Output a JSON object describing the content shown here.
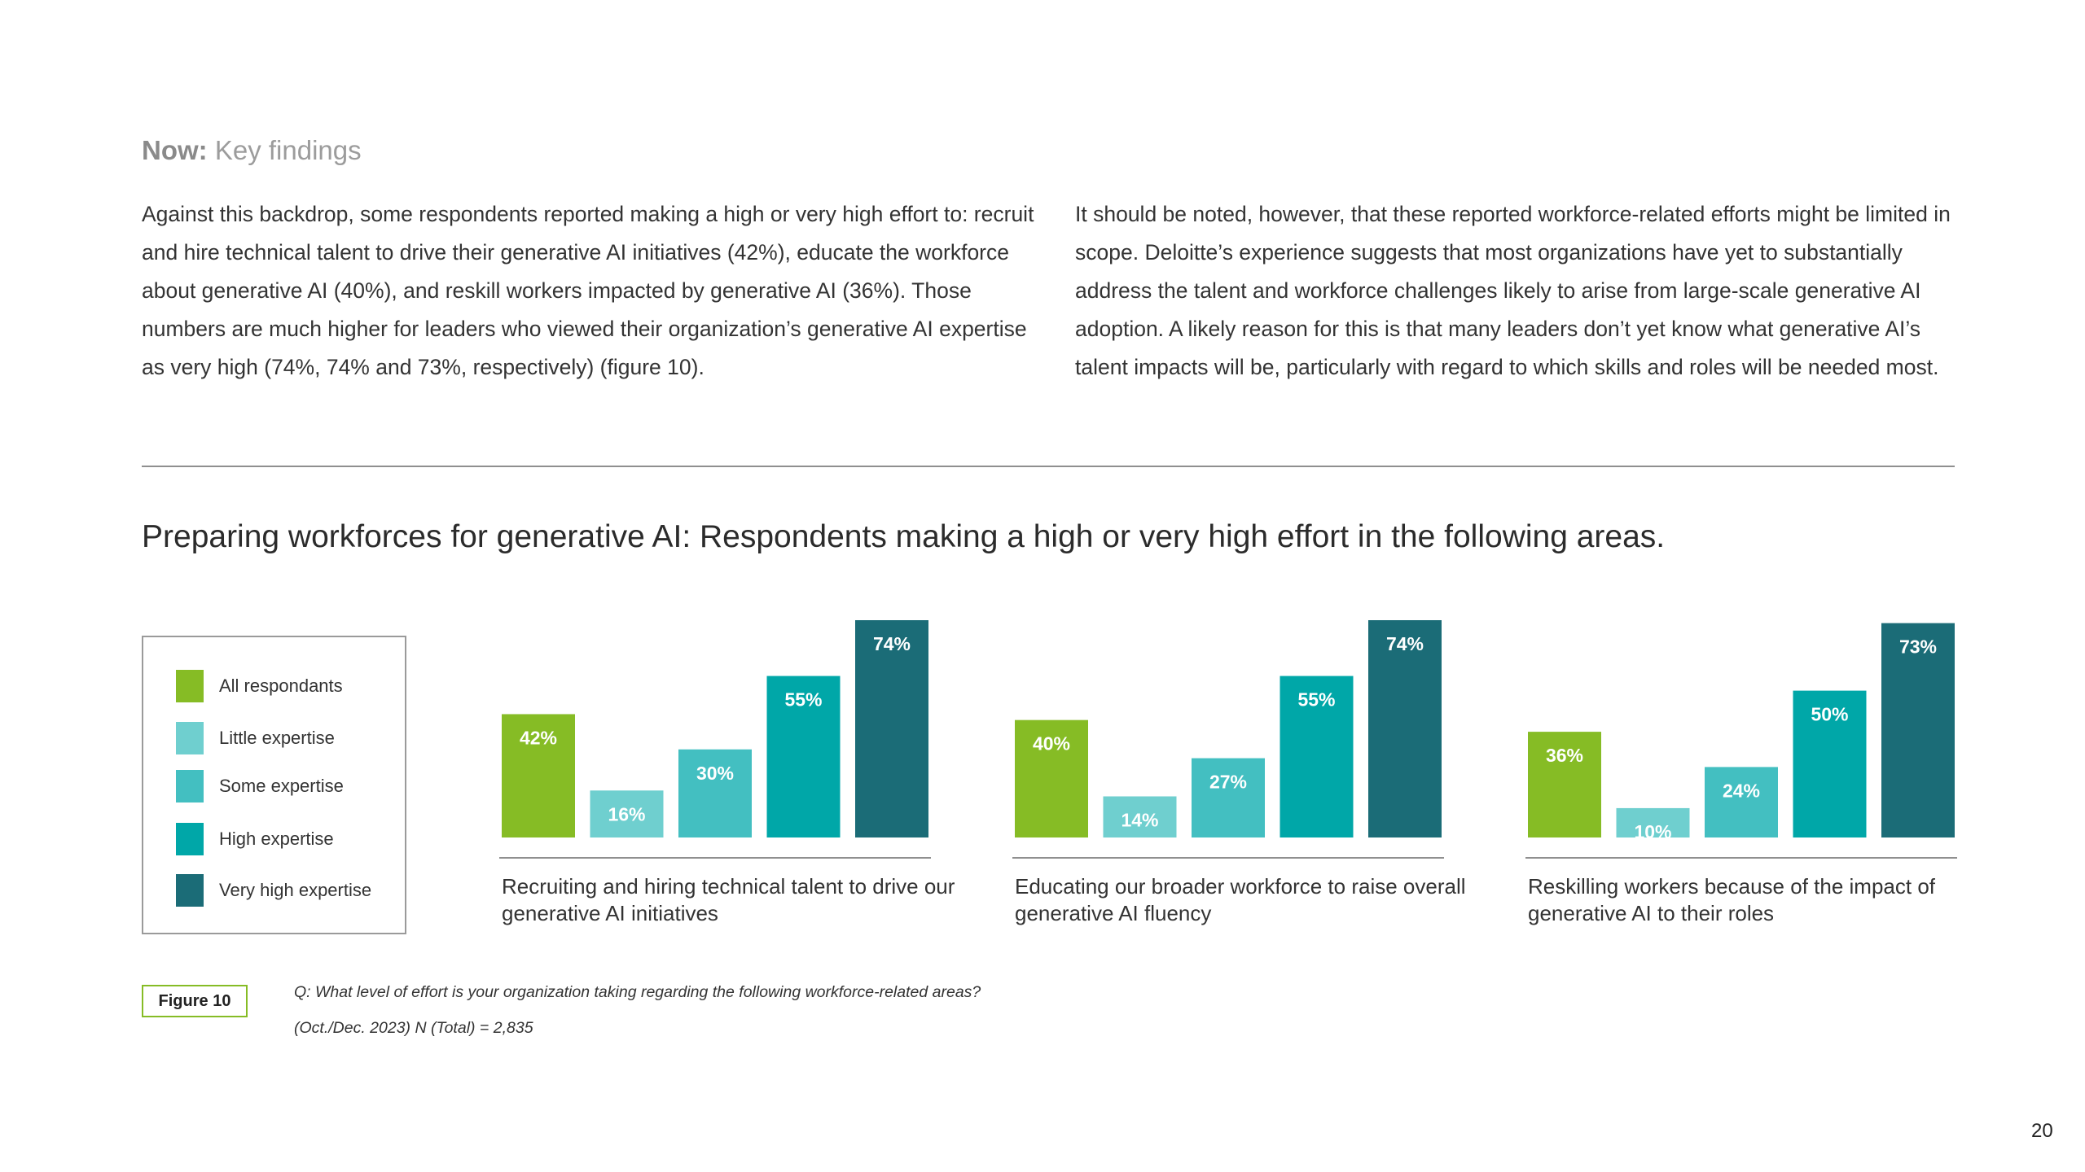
{
  "header": {
    "section_bold": "Now:",
    "section_light": " Key findings"
  },
  "body": {
    "left_paragraph": "Against this backdrop, some respondents reported making a high or very high effort to: recruit and hire technical talent to drive their generative AI initiatives (42%), educate the workforce about generative AI (40%), and reskill workers impacted by generative AI (36%). Those numbers are much higher for leaders who viewed their organization’s generative AI expertise as very high (74%, 74% and 73%, respectively) (figure 10).",
    "right_paragraph": "It should be noted, however, that these reported workforce-related efforts might be limited in scope. Deloitte’s experience suggests that most organizations have yet to substantially address the talent and workforce challenges likely to arise from large-scale generative AI adoption. A likely reason for this is that many leaders don’t yet know what generative AI’s talent impacts will be, particularly with regard to which skills and roles will be needed most."
  },
  "chart_data": {
    "type": "bar",
    "title": "Preparing workforces for generative AI: Respondents making a high or very high effort in the following areas.",
    "categories": [
      "Recruiting and hiring technical talent to drive our generative AI initiatives",
      "Educating our broader workforce to raise overall generative AI fluency",
      "Reskilling workers because of the impact of generative AI to their roles"
    ],
    "series": [
      {
        "name": "All respondants",
        "color": "#86bc25",
        "values": [
          42,
          40,
          36
        ]
      },
      {
        "name": "Little expertise",
        "color": "#6fcfcf",
        "values": [
          16,
          14,
          10
        ]
      },
      {
        "name": "Some expertise",
        "color": "#43bfc1",
        "values": [
          30,
          27,
          24
        ]
      },
      {
        "name": "High expertise",
        "color": "#00a7a8",
        "values": [
          55,
          55,
          50
        ]
      },
      {
        "name": "Very high expertise",
        "color": "#1b6c77",
        "values": [
          74,
          74,
          73
        ]
      }
    ],
    "value_suffix": "%",
    "ylim": [
      0,
      74
    ],
    "legend_position": "left"
  },
  "figure": {
    "badge": "Figure 10",
    "question": "Q: What level of effort is your organization taking regarding the following workforce-related areas?",
    "sample": "(Oct./Dec. 2023) N (Total) = 2,835"
  },
  "page_number": "20"
}
